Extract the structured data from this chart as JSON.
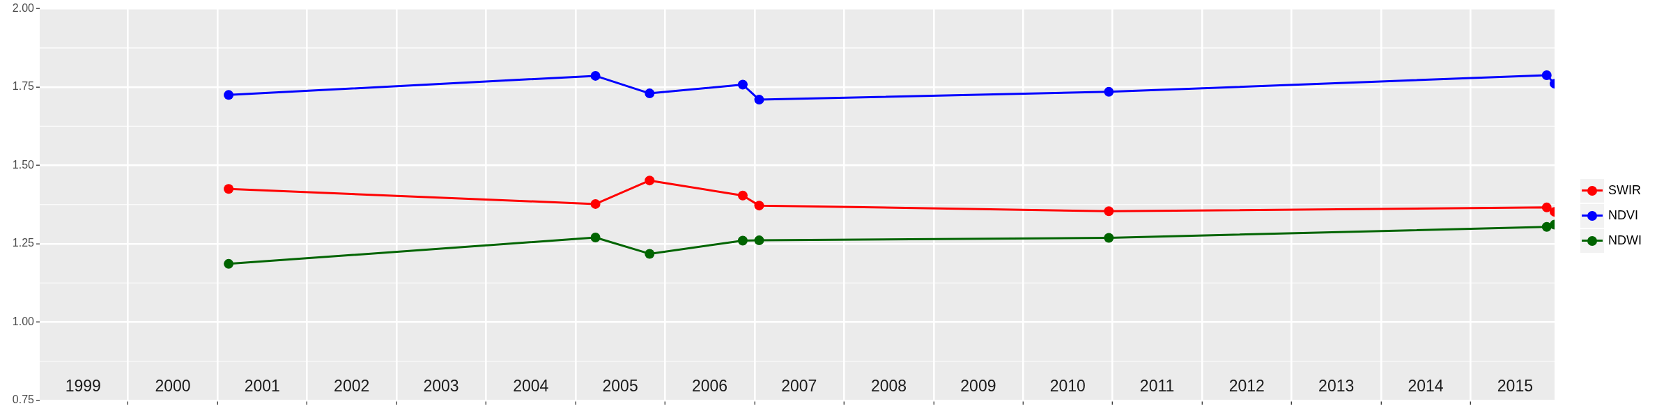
{
  "chart_data": {
    "type": "line",
    "x": [
      "2001-02-15",
      "2005-03-23",
      "2005-10-30",
      "2006-11-14",
      "2007-01-20",
      "2010-12-17",
      "2015-11-08",
      "2015-12-10"
    ],
    "series": [
      {
        "name": "SWIR",
        "color": "#ff0000",
        "values": [
          1.425,
          1.377,
          1.452,
          1.404,
          1.372,
          1.354,
          1.366,
          1.352
        ]
      },
      {
        "name": "NDVI",
        "color": "#0000ff",
        "values": [
          1.725,
          1.786,
          1.73,
          1.758,
          1.71,
          1.735,
          1.788,
          1.761
        ]
      },
      {
        "name": "NDWI",
        "color": "#006400",
        "values": [
          1.186,
          1.27,
          1.218,
          1.26,
          1.261,
          1.269,
          1.304,
          1.311
        ]
      }
    ],
    "xlim": [
      "1999-01-06",
      "2015-12-10"
    ],
    "xticks": [
      {
        "value": "1999-07-02",
        "label": "1999"
      },
      {
        "value": "2000-01-01",
        "label": null
      },
      {
        "value": "2000-07-02",
        "label": "2000"
      },
      {
        "value": "2001-01-01",
        "label": null
      },
      {
        "value": "2001-07-02",
        "label": "2001"
      },
      {
        "value": "2002-01-01",
        "label": null
      },
      {
        "value": "2002-07-02",
        "label": "2002"
      },
      {
        "value": "2003-01-01",
        "label": null
      },
      {
        "value": "2003-07-02",
        "label": "2003"
      },
      {
        "value": "2004-01-01",
        "label": null
      },
      {
        "value": "2004-07-02",
        "label": "2004"
      },
      {
        "value": "2005-01-01",
        "label": null
      },
      {
        "value": "2005-07-02",
        "label": "2005"
      },
      {
        "value": "2006-01-01",
        "label": null
      },
      {
        "value": "2006-07-02",
        "label": "2006"
      },
      {
        "value": "2007-01-01",
        "label": null
      },
      {
        "value": "2007-07-02",
        "label": "2007"
      },
      {
        "value": "2008-01-01",
        "label": null
      },
      {
        "value": "2008-07-02",
        "label": "2008"
      },
      {
        "value": "2009-01-01",
        "label": null
      },
      {
        "value": "2009-07-02",
        "label": "2009"
      },
      {
        "value": "2010-01-01",
        "label": null
      },
      {
        "value": "2010-07-02",
        "label": "2010"
      },
      {
        "value": "2011-01-01",
        "label": null
      },
      {
        "value": "2011-07-02",
        "label": "2011"
      },
      {
        "value": "2012-01-01",
        "label": null
      },
      {
        "value": "2012-07-02",
        "label": "2012"
      },
      {
        "value": "2013-01-01",
        "label": null
      },
      {
        "value": "2013-07-02",
        "label": "2013"
      },
      {
        "value": "2014-01-01",
        "label": null
      },
      {
        "value": "2014-07-02",
        "label": "2014"
      },
      {
        "value": "2015-01-01",
        "label": null
      },
      {
        "value": "2015-07-02",
        "label": "2015"
      }
    ],
    "ylim": [
      0.75,
      2
    ],
    "yticks": [
      {
        "value": 0.75,
        "label": "0.75"
      },
      {
        "value": 1,
        "label": "1.00"
      },
      {
        "value": 1.25,
        "label": "1.25"
      },
      {
        "value": 1.5,
        "label": "1.50"
      },
      {
        "value": 1.75,
        "label": "1.75"
      },
      {
        "value": 2,
        "label": "2.00"
      }
    ],
    "grid": true,
    "legend": "right",
    "marker": "circle",
    "line_style": "solid"
  }
}
